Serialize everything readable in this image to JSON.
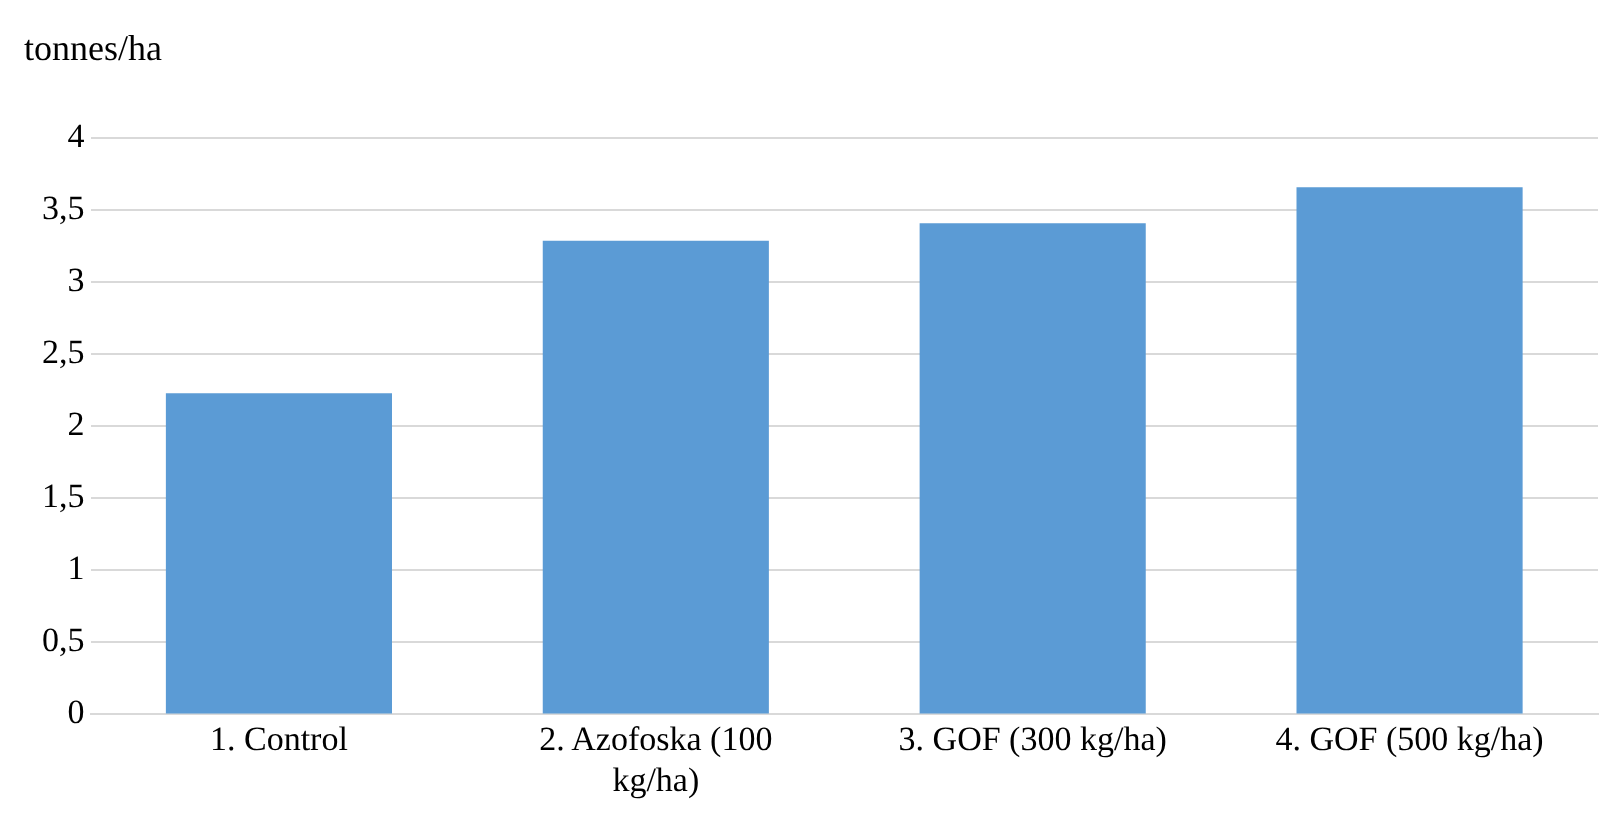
{
  "chart_data": {
    "type": "bar",
    "ylabel": "tonnes/ha",
    "categories": [
      "1. Control",
      "2. Azofoska (100 kg/ha)",
      "3. GOF (300 kg/ha)",
      "4. GOF (500 kg/ha)"
    ],
    "values": [
      2.23,
      3.29,
      3.41,
      3.66
    ],
    "color": "#5b9bd5",
    "ylim": [
      0,
      4
    ],
    "yticks": [
      0,
      {
        "value": 0.5,
        "label": "0,5"
      },
      1,
      {
        "value": 1.5,
        "label": "1,5"
      },
      2,
      {
        "value": 2.5,
        "label": "2,5"
      },
      3,
      {
        "value": 3.5,
        "label": "3,5"
      },
      4
    ],
    "grid": "y",
    "legend": false
  }
}
